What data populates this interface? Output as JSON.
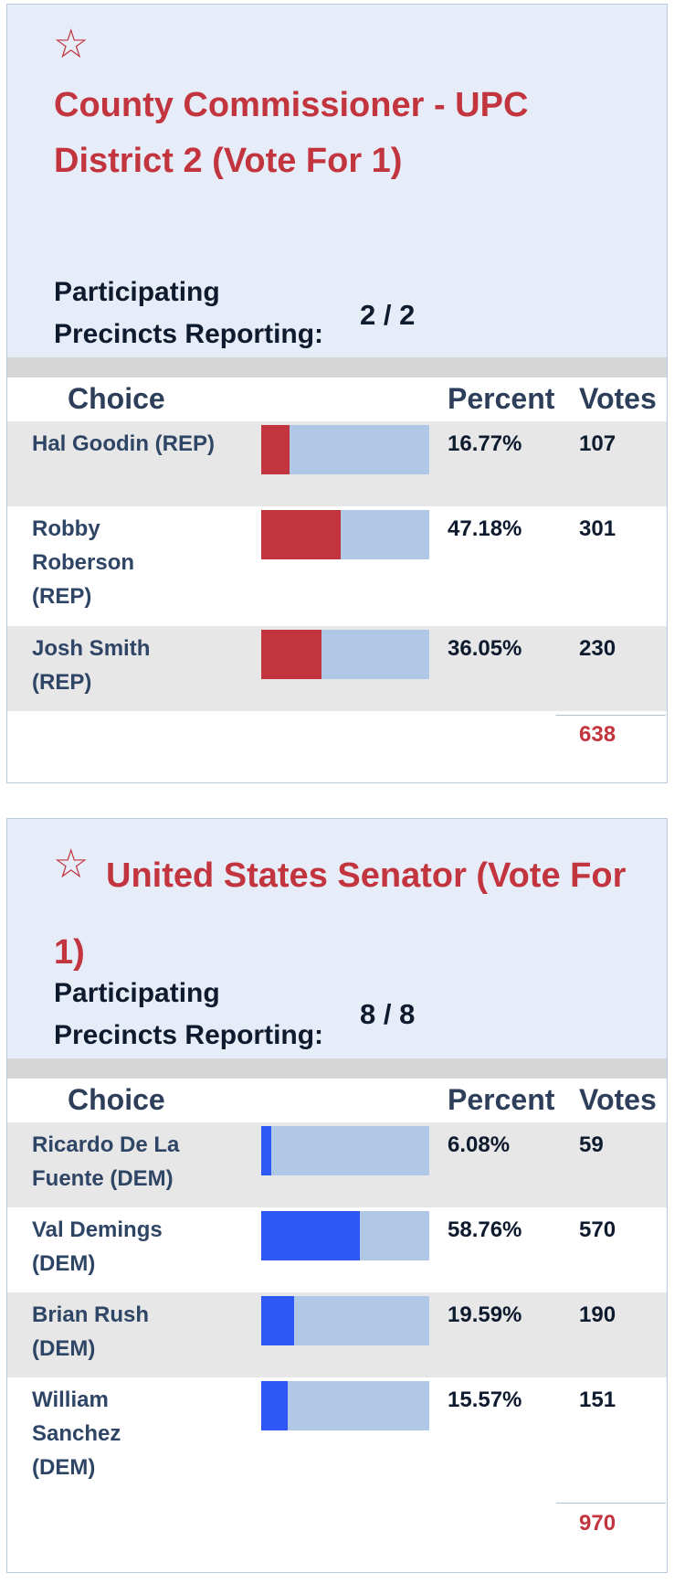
{
  "colors": {
    "title": "#c2353f",
    "header_bg": "#e7edf8",
    "bar_track": "#b0c8e6",
    "rep_fill": "#c2353f",
    "dem_fill": "#2e58f5"
  },
  "races": [
    {
      "star": "☆",
      "title": "County Commissioner - UPC District 2 (Vote For 1)",
      "participating_label": "Participating",
      "precincts_label": "Precincts Reporting:",
      "precincts_value": "2 / 2",
      "headers": {
        "choice": "Choice",
        "percent": "Percent",
        "votes": "Votes"
      },
      "candidates": [
        {
          "name": "Hal Goodin (REP)",
          "percent": "16.77%",
          "votes": "107",
          "share": 0.1677
        },
        {
          "name": "Robby Roberson (REP)",
          "percent": "47.18%",
          "votes": "301",
          "share": 0.4718
        },
        {
          "name": "Josh Smith (REP)",
          "percent": "36.05%",
          "votes": "230",
          "share": 0.3605
        }
      ],
      "total": "638"
    },
    {
      "star": "☆",
      "title": "United States Senator (Vote For 1)",
      "participating_label": "Participating",
      "precincts_label": "Precincts Reporting:",
      "precincts_value": "8 / 8",
      "headers": {
        "choice": "Choice",
        "percent": "Percent",
        "votes": "Votes"
      },
      "candidates": [
        {
          "name": "Ricardo De La Fuente (DEM)",
          "percent": "6.08%",
          "votes": "59",
          "share": 0.0608
        },
        {
          "name": "Val Demings (DEM)",
          "percent": "58.76%",
          "votes": "570",
          "share": 0.5876
        },
        {
          "name": "Brian Rush (DEM)",
          "percent": "19.59%",
          "votes": "190",
          "share": 0.1959
        },
        {
          "name": "William Sanchez (DEM)",
          "percent": "15.57%",
          "votes": "151",
          "share": 0.1557
        }
      ],
      "total": "970"
    }
  ]
}
